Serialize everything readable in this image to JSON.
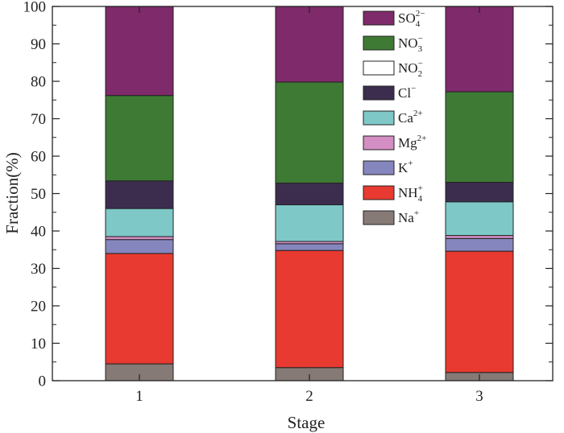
{
  "chart_data": {
    "type": "bar",
    "stacked": true,
    "categories": [
      "1",
      "2",
      "3"
    ],
    "xlabel": "Stage",
    "ylabel": "Fraction(%)",
    "ylim": [
      0,
      100
    ],
    "yticks": [
      0,
      10,
      20,
      30,
      40,
      50,
      60,
      70,
      80,
      90,
      100
    ],
    "grid": false,
    "legend_position": "top-right",
    "series": [
      {
        "name": "Na+",
        "base": "Na",
        "sub": "",
        "sup": "+",
        "color": "#867a76",
        "values": [
          4.5,
          3.5,
          2.2
        ]
      },
      {
        "name": "NH4+",
        "base": "NH",
        "sub": "4",
        "sup": "+",
        "color": "#e83a30",
        "values": [
          29.5,
          31.3,
          32.4
        ]
      },
      {
        "name": "K+",
        "base": "K",
        "sub": "",
        "sup": "+",
        "color": "#8686be",
        "values": [
          3.7,
          1.8,
          3.4
        ]
      },
      {
        "name": "Mg2+",
        "base": "Mg",
        "sub": "",
        "sup": "2+",
        "color": "#d48ec4",
        "values": [
          0.8,
          0.6,
          0.8
        ]
      },
      {
        "name": "Ca2+",
        "base": "Ca",
        "sub": "",
        "sup": "2+",
        "color": "#7ec8c8",
        "values": [
          7.5,
          9.8,
          9.0
        ]
      },
      {
        "name": "Cl−",
        "base": "Cl",
        "sub": "",
        "sup": "−",
        "color": "#3c2d4e",
        "values": [
          7.4,
          5.8,
          5.2
        ]
      },
      {
        "name": "NO2−",
        "base": "NO",
        "sub": "2",
        "sup": "−",
        "color": "#ffffff",
        "values": [
          0.0,
          0.0,
          0.0
        ]
      },
      {
        "name": "NO3−",
        "base": "NO",
        "sub": "3",
        "sup": "−",
        "color": "#3e7a34",
        "values": [
          22.8,
          27.0,
          24.2
        ]
      },
      {
        "name": "SO42−",
        "base": "SO",
        "sub": "4",
        "sup": "2−",
        "color": "#7f2a6a",
        "values": [
          23.8,
          20.2,
          22.8
        ]
      }
    ]
  }
}
